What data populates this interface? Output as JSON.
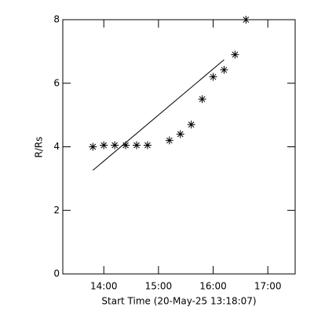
{
  "chart_data": {
    "type": "scatter",
    "xlabel": "Start Time (20-May-25 13:18:07)",
    "ylabel": "R/Rs",
    "xlim": [
      13.25,
      17.5
    ],
    "xticks": [
      {
        "value": 14,
        "label": "14:00"
      },
      {
        "value": 15,
        "label": "15:00"
      },
      {
        "value": 16,
        "label": "16:00"
      },
      {
        "value": 17,
        "label": "17:00"
      }
    ],
    "ylim": [
      0,
      8
    ],
    "yticks": [
      0,
      2,
      4,
      6,
      8
    ],
    "color": "#000000",
    "series": [
      {
        "mode": "markers",
        "marker": "asterisk",
        "x": [
          13.8,
          14.0,
          14.2,
          14.4,
          14.6,
          14.8,
          15.2,
          15.4,
          15.6,
          15.8,
          16.0,
          16.2,
          16.4,
          16.6
        ],
        "values": [
          4.0,
          4.05,
          4.05,
          4.05,
          4.05,
          4.05,
          4.2,
          4.4,
          4.7,
          5.5,
          6.2,
          6.42,
          6.9,
          8.0
        ]
      },
      {
        "mode": "line",
        "x": [
          13.8,
          16.2
        ],
        "values": [
          3.26,
          6.74
        ]
      }
    ]
  }
}
